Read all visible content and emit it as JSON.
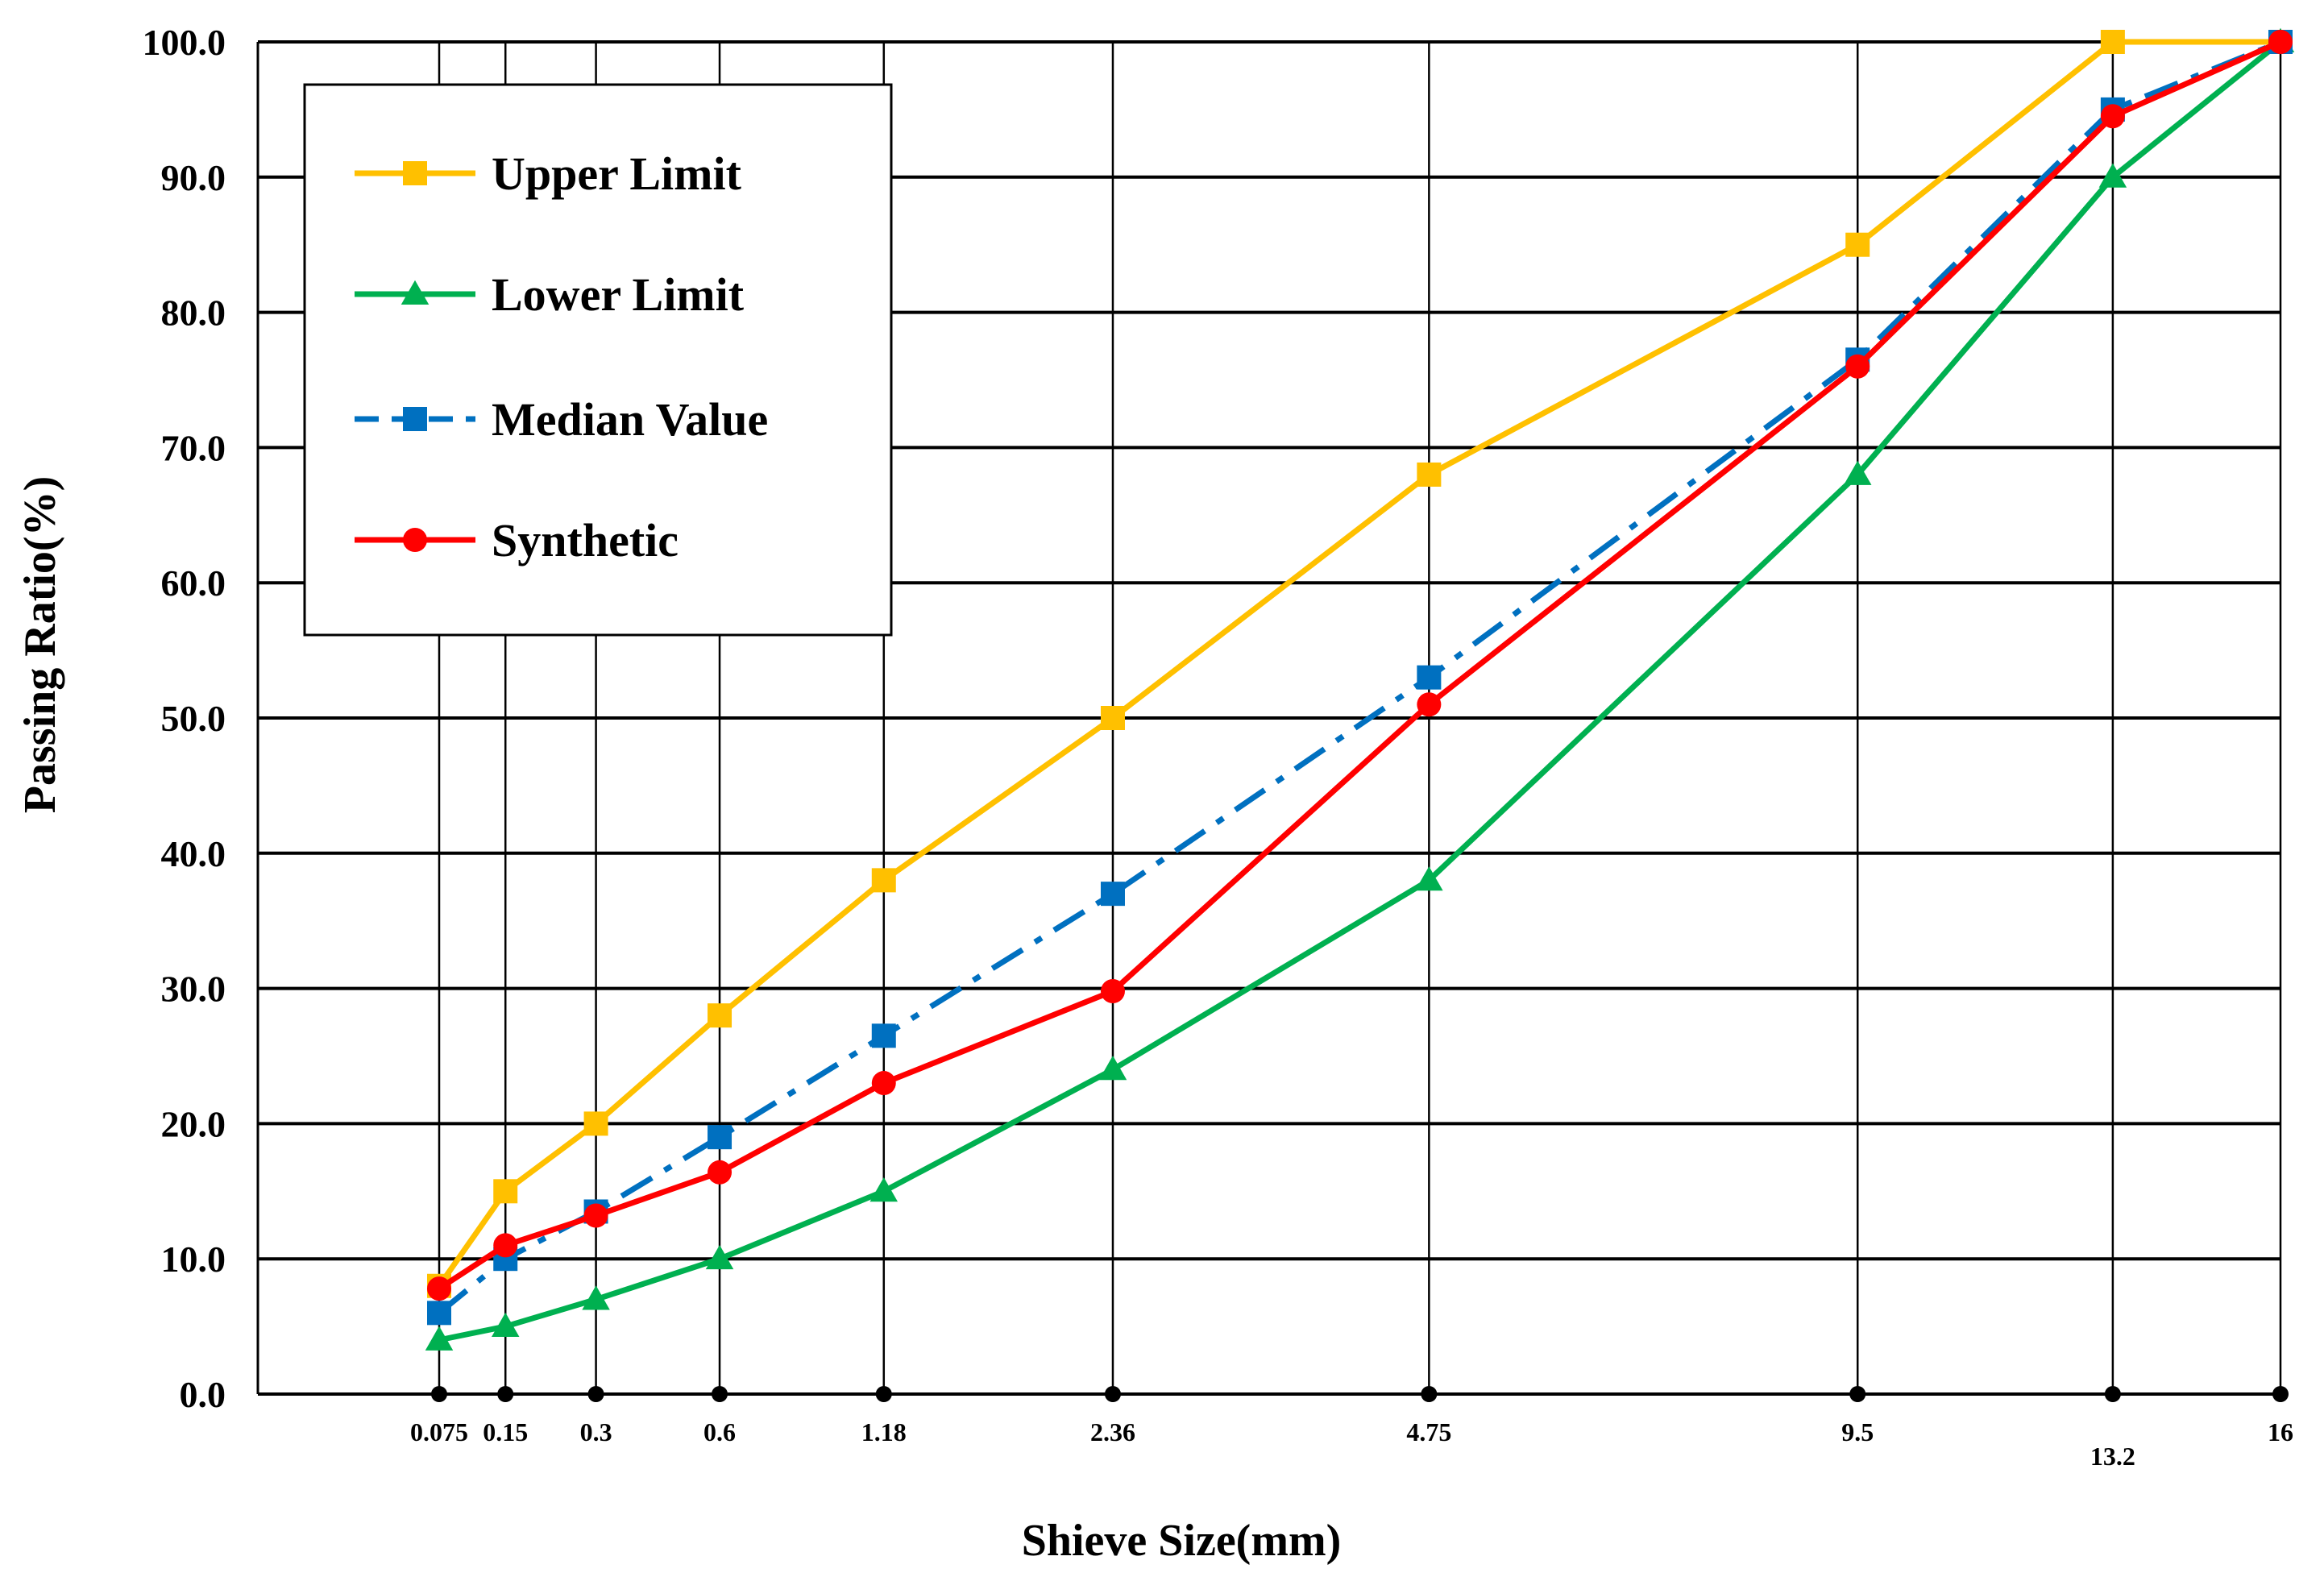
{
  "chart_data": {
    "type": "line",
    "title": "",
    "xlabel": "Shieve Size(mm)",
    "ylabel": "Passing Ratio(%)",
    "ylim": [
      0,
      100
    ],
    "y_ticks": [
      "0.0",
      "10.0",
      "20.0",
      "30.0",
      "40.0",
      "50.0",
      "60.0",
      "70.0",
      "80.0",
      "90.0",
      "100.0"
    ],
    "categories": [
      "0.075",
      "0.15",
      "0.3",
      "0.6",
      "1.18",
      "2.36",
      "4.75",
      "9.5",
      "13.2",
      "16"
    ],
    "x_scale": "sieve size raised to 0.45 power",
    "grid": true,
    "legend_position": "top-left",
    "series": [
      {
        "name": "Upper Limit",
        "color": "#FFC000",
        "marker": "square",
        "dash": "solid",
        "values": [
          8,
          15,
          20,
          28,
          38,
          50,
          68,
          85,
          100,
          100
        ]
      },
      {
        "name": "Lower Limit",
        "color": "#00B050",
        "marker": "triangle",
        "dash": "solid",
        "values": [
          4,
          5,
          7,
          10,
          15,
          24,
          38,
          68,
          90,
          100
        ]
      },
      {
        "name": "Median Value",
        "color": "#0070C0",
        "marker": "square",
        "dash": "dashdot",
        "values": [
          6,
          10,
          13.5,
          19,
          26.5,
          37,
          53,
          76.5,
          95,
          100
        ]
      },
      {
        "name": "Synthetic",
        "color": "#FF0000",
        "marker": "circle",
        "dash": "solid",
        "values": [
          7.8,
          11,
          13.2,
          16.4,
          23,
          29.8,
          51,
          76,
          94.5,
          100
        ]
      }
    ]
  }
}
